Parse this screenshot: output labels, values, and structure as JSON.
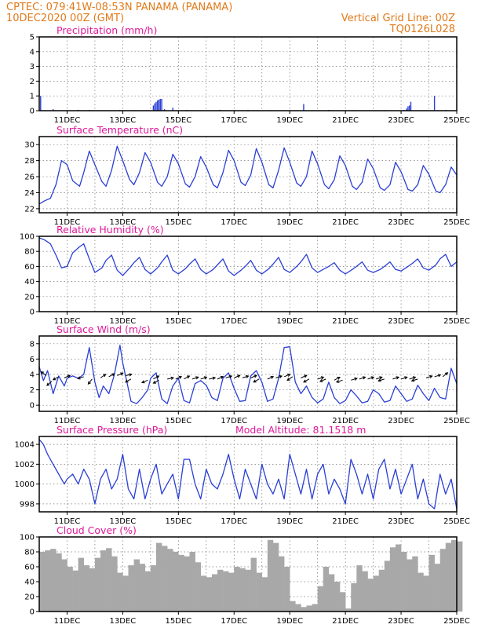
{
  "header": {
    "line1_left": "CPTEC:   079:41W-08:53N   PANAMA (PANAMA)",
    "line2_left": "10DEC2020 00Z (GMT)",
    "line1_right": "Vertical Grid Line: 00Z",
    "line2_right": "TQ0126L028"
  },
  "colors": {
    "header": "#e07a1a",
    "title": "#e0189a",
    "line": "#2a3fd6",
    "cloud": "#a8a8a8",
    "grid": "#777777",
    "arrow": "#000000"
  },
  "x_axis": {
    "unit": "day",
    "range": [
      10,
      25
    ],
    "tick_days": [
      11,
      13,
      15,
      17,
      19,
      21,
      23,
      25
    ],
    "tick_labels": [
      "11DEC",
      "13DEC",
      "15DEC",
      "17DEC",
      "19DEC",
      "21DEC",
      "23DEC",
      "25DEC"
    ]
  },
  "chart_data": [
    {
      "id": "precip",
      "type": "bar",
      "title": "Precipitation (mm/h)",
      "ylim": [
        0,
        5
      ],
      "yticks": [
        0,
        1,
        2,
        3,
        4,
        5
      ],
      "grid": true,
      "x_unit": "day",
      "bars": [
        [
          10.05,
          1.0
        ],
        [
          10.5,
          0.1
        ],
        [
          11.4,
          0.06
        ],
        [
          11.8,
          0.05
        ],
        [
          12.9,
          0.05
        ],
        [
          13.4,
          0.04
        ],
        [
          14.1,
          0.35
        ],
        [
          14.15,
          0.5
        ],
        [
          14.2,
          0.6
        ],
        [
          14.25,
          0.7
        ],
        [
          14.3,
          0.75
        ],
        [
          14.35,
          0.8
        ],
        [
          14.4,
          0.8
        ],
        [
          14.5,
          0.1
        ],
        [
          14.8,
          0.2
        ],
        [
          15.3,
          0.05
        ],
        [
          16.5,
          0.06
        ],
        [
          17.5,
          0.05
        ],
        [
          18.3,
          0.04
        ],
        [
          19.5,
          0.45
        ],
        [
          20.4,
          0.05
        ],
        [
          21.3,
          0.04
        ],
        [
          22.4,
          0.04
        ],
        [
          23.1,
          0.05
        ],
        [
          23.2,
          0.15
        ],
        [
          23.25,
          0.3
        ],
        [
          23.3,
          0.35
        ],
        [
          23.35,
          0.6
        ],
        [
          24.2,
          1.0
        ],
        [
          24.6,
          0.05
        ]
      ]
    },
    {
      "id": "temp",
      "type": "line",
      "title": "Surface Temperature (nC)",
      "ylim": [
        21.5,
        31
      ],
      "yticks": [
        22,
        24,
        26,
        28,
        30
      ],
      "grid": true,
      "x": [
        10.0,
        10.2,
        10.4,
        10.6,
        10.8,
        11.0,
        11.2,
        11.45,
        11.6,
        11.8,
        12.0,
        12.25,
        12.4,
        12.6,
        12.8,
        13.0,
        13.25,
        13.4,
        13.6,
        13.8,
        14.0,
        14.25,
        14.4,
        14.6,
        14.8,
        15.0,
        15.25,
        15.4,
        15.6,
        15.8,
        16.0,
        16.25,
        16.4,
        16.6,
        16.8,
        17.0,
        17.25,
        17.4,
        17.6,
        17.8,
        18.0,
        18.25,
        18.4,
        18.6,
        18.8,
        19.0,
        19.25,
        19.4,
        19.6,
        19.8,
        20.0,
        20.25,
        20.4,
        20.6,
        20.8,
        21.0,
        21.25,
        21.4,
        21.6,
        21.8,
        22.0,
        22.25,
        22.4,
        22.6,
        22.8,
        23.0,
        23.25,
        23.4,
        23.6,
        23.8,
        24.0,
        24.25,
        24.4,
        24.6,
        24.8,
        25.0
      ],
      "y": [
        22.6,
        23.0,
        23.3,
        25.0,
        28.0,
        27.5,
        25.5,
        24.8,
        26.5,
        29.2,
        27.5,
        25.4,
        24.8,
        26.8,
        29.8,
        28.0,
        25.6,
        25.0,
        26.5,
        29.0,
        27.8,
        25.3,
        24.8,
        26.0,
        28.8,
        27.6,
        25.1,
        24.7,
        26.0,
        28.5,
        27.2,
        25.0,
        24.6,
        26.5,
        29.3,
        28.0,
        25.3,
        24.9,
        26.2,
        29.5,
        27.8,
        25.0,
        24.6,
        26.8,
        29.6,
        27.8,
        25.2,
        24.8,
        26.0,
        29.2,
        27.6,
        25.0,
        24.5,
        25.6,
        28.6,
        27.4,
        24.8,
        24.4,
        25.3,
        28.2,
        27.0,
        24.6,
        24.3,
        25.0,
        27.8,
        26.6,
        24.4,
        24.2,
        25.0,
        27.4,
        26.3,
        24.2,
        24.0,
        25.0,
        27.2,
        26.2
      ]
    },
    {
      "id": "rh",
      "type": "line",
      "title": "Relative Humidity (%)",
      "ylim": [
        0,
        100
      ],
      "yticks": [
        0,
        20,
        40,
        60,
        80,
        100
      ],
      "grid": true,
      "x": [
        10.0,
        10.2,
        10.4,
        10.6,
        10.8,
        11.0,
        11.2,
        11.45,
        11.6,
        11.8,
        12.0,
        12.25,
        12.4,
        12.6,
        12.8,
        13.0,
        13.25,
        13.4,
        13.6,
        13.8,
        14.0,
        14.25,
        14.4,
        14.6,
        14.8,
        15.0,
        15.25,
        15.4,
        15.6,
        15.8,
        16.0,
        16.25,
        16.4,
        16.6,
        16.8,
        17.0,
        17.25,
        17.4,
        17.6,
        17.8,
        18.0,
        18.25,
        18.4,
        18.6,
        18.8,
        19.0,
        19.25,
        19.4,
        19.6,
        19.8,
        20.0,
        20.25,
        20.4,
        20.6,
        20.8,
        21.0,
        21.25,
        21.4,
        21.6,
        21.8,
        22.0,
        22.25,
        22.4,
        22.6,
        22.8,
        23.0,
        23.25,
        23.4,
        23.6,
        23.8,
        24.0,
        24.25,
        24.4,
        24.6,
        24.8,
        25.0
      ],
      "y": [
        98,
        95,
        90,
        75,
        58,
        60,
        78,
        86,
        90,
        70,
        52,
        58,
        68,
        75,
        55,
        48,
        58,
        65,
        72,
        56,
        50,
        58,
        66,
        75,
        55,
        50,
        57,
        63,
        70,
        56,
        50,
        56,
        62,
        70,
        54,
        48,
        55,
        60,
        68,
        55,
        50,
        57,
        63,
        72,
        56,
        52,
        60,
        66,
        76,
        58,
        52,
        57,
        60,
        65,
        55,
        50,
        56,
        60,
        66,
        55,
        52,
        56,
        60,
        66,
        56,
        54,
        60,
        64,
        70,
        58,
        55,
        62,
        70,
        76,
        60,
        66
      ]
    },
    {
      "id": "wind",
      "type": "line",
      "title": "Surface Wind (m/s)",
      "ylim": [
        -0.8,
        9
      ],
      "yticks": [
        0,
        2,
        4,
        6,
        8
      ],
      "grid": true,
      "x": [
        10.0,
        10.15,
        10.3,
        10.5,
        10.7,
        10.9,
        11.0,
        11.2,
        11.4,
        11.6,
        11.8,
        12.0,
        12.15,
        12.3,
        12.5,
        12.7,
        12.9,
        13.0,
        13.15,
        13.3,
        13.5,
        13.7,
        13.9,
        14.0,
        14.2,
        14.4,
        14.6,
        14.8,
        15.0,
        15.2,
        15.4,
        15.6,
        15.8,
        16.0,
        16.2,
        16.4,
        16.6,
        16.8,
        17.0,
        17.2,
        17.4,
        17.6,
        17.8,
        18.0,
        18.2,
        18.4,
        18.6,
        18.8,
        19.0,
        19.2,
        19.4,
        19.6,
        19.8,
        20.0,
        20.2,
        20.4,
        20.6,
        20.8,
        21.0,
        21.2,
        21.4,
        21.6,
        21.8,
        22.0,
        22.2,
        22.4,
        22.6,
        22.8,
        23.0,
        23.2,
        23.4,
        23.6,
        23.8,
        24.0,
        24.2,
        24.4,
        24.6,
        24.8,
        25.0
      ],
      "y": [
        5.0,
        3.2,
        4.5,
        1.5,
        3.8,
        2.5,
        3.5,
        3.8,
        3.5,
        4.0,
        7.5,
        3.0,
        1.0,
        2.5,
        1.5,
        4.0,
        7.8,
        5.5,
        3.0,
        0.5,
        0.2,
        1.0,
        2.0,
        3.5,
        4.2,
        0.8,
        0.2,
        2.5,
        3.5,
        0.6,
        0.3,
        2.8,
        3.2,
        2.6,
        1.0,
        0.6,
        3.5,
        4.2,
        2.2,
        0.5,
        0.6,
        3.8,
        4.5,
        3.0,
        0.5,
        0.8,
        3.5,
        7.5,
        7.6,
        3.0,
        1.5,
        2.5,
        1.0,
        0.3,
        0.8,
        3.0,
        1.0,
        0.2,
        0.6,
        2.0,
        1.2,
        0.3,
        0.5,
        2.0,
        1.5,
        0.4,
        0.6,
        2.5,
        1.5,
        0.5,
        0.8,
        2.6,
        1.5,
        0.6,
        2.2,
        1.0,
        0.8,
        4.8,
        2.8
      ],
      "arrows": [
        [
          10.25,
          0.9,
          2.5
        ],
        [
          10.45,
          0.4,
          -0.7
        ],
        [
          10.7,
          0.8,
          -0.5
        ],
        [
          10.9,
          0.7,
          0.4
        ],
        [
          11.6,
          0.8,
          -0.3
        ],
        [
          11.9,
          0.6,
          -0.9
        ],
        [
          12.2,
          0.7,
          0.6
        ],
        [
          12.5,
          0.8,
          0.5
        ],
        [
          12.8,
          0.9,
          0.4
        ],
        [
          13.1,
          0.9,
          0.2
        ],
        [
          13.3,
          0.6,
          -0.5
        ],
        [
          13.9,
          0.5,
          -0.4
        ],
        [
          14.1,
          0.6,
          0.5
        ],
        [
          14.3,
          0.5,
          -0.5
        ],
        [
          14.6,
          0.6,
          0.2
        ],
        [
          14.9,
          0.6,
          0.4
        ],
        [
          15.2,
          0.6,
          0.5
        ],
        [
          15.5,
          0.6,
          0.3
        ],
        [
          15.8,
          0.6,
          0.3
        ],
        [
          16.1,
          0.6,
          0.2
        ],
        [
          16.4,
          0.6,
          0.4
        ],
        [
          16.7,
          0.7,
          0.3
        ],
        [
          17.0,
          0.7,
          0.4
        ],
        [
          17.3,
          0.7,
          0.3
        ],
        [
          17.6,
          0.7,
          0.4
        ],
        [
          17.9,
          0.6,
          -0.5
        ],
        [
          18.2,
          0.6,
          0.4
        ],
        [
          18.5,
          0.7,
          0.3
        ],
        [
          18.8,
          0.8,
          0.4
        ],
        [
          19.1,
          0.8,
          -0.6
        ],
        [
          19.4,
          0.7,
          0.4
        ],
        [
          19.7,
          0.6,
          -0.5
        ],
        [
          20.0,
          0.6,
          0.3
        ],
        [
          20.3,
          0.6,
          -0.4
        ],
        [
          20.6,
          0.5,
          0.5
        ],
        [
          20.9,
          0.5,
          -0.3
        ],
        [
          21.2,
          0.5,
          0.3
        ],
        [
          21.5,
          0.6,
          0.3
        ],
        [
          21.8,
          0.6,
          0.3
        ],
        [
          22.1,
          0.6,
          0.3
        ],
        [
          22.4,
          0.6,
          -0.3
        ],
        [
          22.7,
          0.6,
          0.3
        ],
        [
          23.0,
          0.6,
          0.3
        ],
        [
          23.3,
          0.6,
          0.3
        ],
        [
          23.6,
          0.6,
          -0.3
        ],
        [
          23.9,
          0.7,
          0.3
        ],
        [
          24.2,
          0.8,
          0.3
        ],
        [
          24.5,
          0.8,
          0.7
        ]
      ]
    },
    {
      "id": "pres",
      "type": "line",
      "title": "Surface Pressure (hPa)",
      "annotation": "Model Altitude: 81.1518 m",
      "ylim": [
        997.2,
        1004.8
      ],
      "yticks": [
        998,
        1000,
        1002,
        1004
      ],
      "grid": true,
      "x": [
        10.0,
        10.15,
        10.3,
        10.5,
        10.7,
        10.9,
        11.0,
        11.2,
        11.4,
        11.6,
        11.8,
        12.0,
        12.2,
        12.4,
        12.6,
        12.8,
        13.0,
        13.2,
        13.4,
        13.6,
        13.8,
        14.0,
        14.2,
        14.4,
        14.6,
        14.8,
        15.0,
        15.2,
        15.4,
        15.6,
        15.8,
        16.0,
        16.2,
        16.4,
        16.6,
        16.8,
        17.0,
        17.2,
        17.4,
        17.6,
        17.8,
        18.0,
        18.2,
        18.4,
        18.6,
        18.8,
        19.0,
        19.2,
        19.4,
        19.6,
        19.8,
        20.0,
        20.2,
        20.4,
        20.6,
        20.8,
        21.0,
        21.2,
        21.4,
        21.6,
        21.8,
        22.0,
        22.2,
        22.4,
        22.6,
        22.8,
        23.0,
        23.2,
        23.4,
        23.6,
        23.8,
        24.0,
        24.2,
        24.4,
        24.6,
        24.8,
        25.0
      ],
      "y": [
        1004.5,
        1004.0,
        1003.0,
        1002.0,
        1001.0,
        1000.0,
        1000.5,
        1001.0,
        1000.0,
        1001.5,
        1000.5,
        998.0,
        1000.5,
        1001.5,
        999.5,
        1000.5,
        1003.0,
        999.5,
        998.5,
        1001.5,
        998.5,
        1000.5,
        1002.0,
        999.0,
        1000.0,
        1001.0,
        998.5,
        1002.5,
        1002.5,
        1000.0,
        998.5,
        1001.5,
        1000.0,
        999.5,
        1001.0,
        1003.0,
        1000.5,
        998.5,
        1001.5,
        1000.0,
        998.5,
        1002.0,
        1000.0,
        999.0,
        1000.5,
        998.5,
        1003.0,
        1001.0,
        999.0,
        1001.5,
        998.5,
        1001.0,
        1002.0,
        999.0,
        1000.5,
        999.5,
        998.0,
        1002.5,
        1001.0,
        999.0,
        1001.0,
        998.5,
        1001.5,
        1002.5,
        999.5,
        1001.5,
        999.0,
        1000.5,
        1002.0,
        998.5,
        1000.5,
        998.0,
        997.5,
        1001.0,
        999.0,
        1000.5,
        997.5
      ]
    },
    {
      "id": "cloud",
      "type": "area",
      "title": "Cloud Cover (%)",
      "ylim": [
        0,
        100
      ],
      "yticks": [
        0,
        20,
        40,
        60,
        80,
        100
      ],
      "grid": true,
      "x": [
        10.0,
        10.2,
        10.4,
        10.6,
        10.8,
        11.0,
        11.2,
        11.4,
        11.6,
        11.8,
        12.0,
        12.2,
        12.4,
        12.6,
        12.8,
        13.0,
        13.2,
        13.4,
        13.6,
        13.8,
        14.0,
        14.2,
        14.4,
        14.6,
        14.8,
        15.0,
        15.2,
        15.4,
        15.6,
        15.8,
        16.0,
        16.2,
        16.4,
        16.6,
        16.8,
        17.0,
        17.2,
        17.4,
        17.6,
        17.8,
        18.0,
        18.2,
        18.4,
        18.6,
        18.8,
        19.0,
        19.2,
        19.4,
        19.6,
        19.8,
        20.0,
        20.2,
        20.4,
        20.6,
        20.8,
        21.0,
        21.2,
        21.4,
        21.6,
        21.8,
        22.0,
        22.2,
        22.4,
        22.6,
        22.8,
        23.0,
        23.2,
        23.4,
        23.6,
        23.8,
        24.0,
        24.2,
        24.4,
        24.6,
        24.8,
        25.0
      ],
      "y": [
        80,
        82,
        84,
        78,
        70,
        60,
        55,
        72,
        62,
        58,
        72,
        82,
        85,
        74,
        52,
        48,
        62,
        70,
        64,
        54,
        62,
        92,
        88,
        84,
        80,
        76,
        74,
        80,
        66,
        48,
        46,
        50,
        56,
        54,
        52,
        60,
        58,
        56,
        72,
        52,
        46,
        96,
        92,
        74,
        60,
        14,
        10,
        6,
        8,
        10,
        34,
        60,
        50,
        40,
        26,
        4,
        38,
        62,
        54,
        44,
        48,
        56,
        68,
        86,
        90,
        80,
        70,
        74,
        52,
        48,
        76,
        64,
        84,
        92,
        96,
        94
      ]
    }
  ]
}
